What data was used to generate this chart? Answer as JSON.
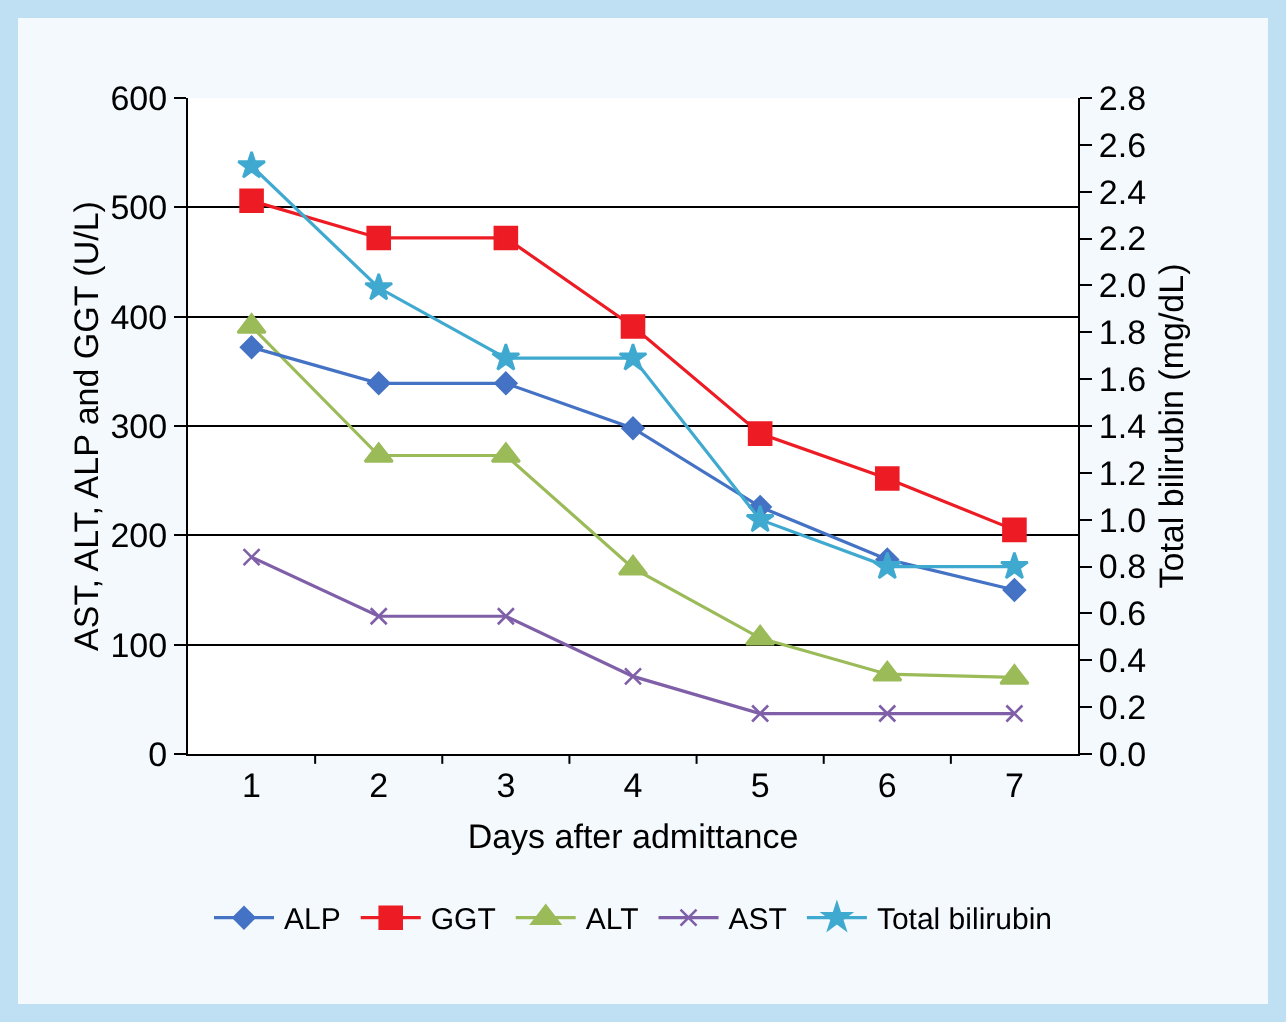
{
  "chart_data": {
    "type": "line",
    "xlabel": "Days after admittance",
    "ylabel": "AST, ALT, ALP and GGT (U/L)",
    "y2label": "Total bilirubin (mg/dL)",
    "categories": [
      "1",
      "2",
      "3",
      "4",
      "5",
      "6",
      "7"
    ],
    "series": [
      {
        "name": "ALP",
        "color": "#4472c4",
        "marker": "diamond",
        "values": [
          372,
          339,
          339,
          298,
          226,
          178,
          150
        ]
      },
      {
        "name": "GGT",
        "color": "#ed1c24",
        "marker": "square",
        "values": [
          506,
          472,
          472,
          391,
          293,
          252,
          205
        ]
      },
      {
        "name": "ALT",
        "color": "#9bbb59",
        "marker": "triangle",
        "values": [
          391,
          273,
          273,
          170,
          106,
          73,
          70
        ]
      },
      {
        "name": "AST",
        "color": "#7f5fa8",
        "marker": "cross",
        "values": [
          180,
          126,
          126,
          71,
          37,
          37,
          37
        ]
      },
      {
        "name": "Total bilirubin",
        "color": "#3fa9d0",
        "marker": "star",
        "axis": "y2",
        "values": [
          2.51,
          1.99,
          1.69,
          1.69,
          1.0,
          0.8,
          0.8
        ]
      }
    ],
    "ylim": [
      0,
      600
    ],
    "yticks": [
      0,
      100,
      200,
      300,
      400,
      500,
      600
    ],
    "y2lim": [
      0,
      2.8
    ],
    "y2ticks": [
      {
        "value": 0,
        "label": "0.0"
      },
      {
        "value": 0.2,
        "label": "0.2"
      },
      {
        "value": 0.4,
        "label": "0.4"
      },
      {
        "value": 0.6,
        "label": "0.6"
      },
      {
        "value": 0.8,
        "label": "0.8"
      },
      {
        "value": 1,
        "label": "1.0"
      },
      {
        "value": 1.2,
        "label": "1.2"
      },
      {
        "value": 1.4,
        "label": "1.4"
      },
      {
        "value": 1.6,
        "label": "1.6"
      },
      {
        "value": 1.8,
        "label": "1.8"
      },
      {
        "value": 2,
        "label": "2.0"
      },
      {
        "value": 2.2,
        "label": "2.2"
      },
      {
        "value": 2.4,
        "label": "2.4"
      },
      {
        "value": 2.6,
        "label": "2.6"
      },
      {
        "value": 2.8,
        "label": "2.8"
      }
    ],
    "grid": "y",
    "legend": "bottom",
    "line_style": "solid"
  }
}
